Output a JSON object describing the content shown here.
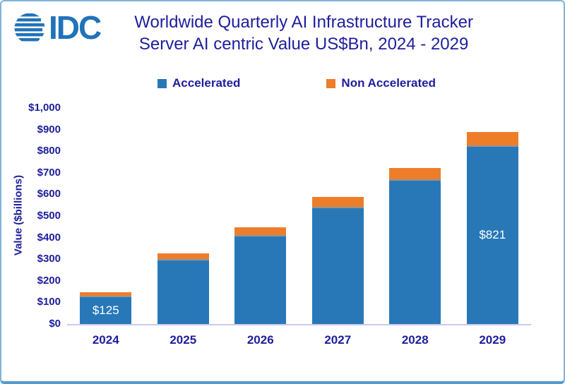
{
  "header": {
    "title_line1": "Worldwide Quarterly AI Infrastructure Tracker",
    "title_line2": "Server AI centric Value US$Bn, 2024 - 2029"
  },
  "logo": {
    "text": "IDC"
  },
  "colors": {
    "accelerated": "#2878b8",
    "non_accelerated": "#ee7d2a",
    "navy_text": "#1e1e9c",
    "logo_blue": "#2173b8",
    "axis_line": "#c9c9f2",
    "frame_border": "#7fb3d8",
    "segment_divider": "#8e9499",
    "bar_label_text": "#ffffff"
  },
  "legend": {
    "items": [
      {
        "label": "Accelerated",
        "color": "#2878b8"
      },
      {
        "label": "Non Accelerated",
        "color": "#ee7d2a"
      }
    ]
  },
  "chart_data": {
    "type": "bar",
    "stacked": true,
    "title": "Worldwide Quarterly AI Infrastructure Tracker",
    "subtitle": "Server AI centric Value US$Bn, 2024 - 2029",
    "categories": [
      "2024",
      "2025",
      "2026",
      "2027",
      "2028",
      "2029"
    ],
    "series": [
      {
        "name": "Accelerated",
        "color": "#2878b8",
        "values": [
          125,
          293,
          404,
          535,
          663,
          821
        ]
      },
      {
        "name": "Non Accelerated",
        "color": "#ee7d2a",
        "values": [
          23,
          33,
          43,
          53,
          60,
          68
        ]
      }
    ],
    "totals_estimated": [
      148,
      326,
      447,
      588,
      723,
      889
    ],
    "bar_labels": [
      "$125",
      "",
      "",
      "",
      "",
      "$821"
    ],
    "xlabel": "",
    "ylabel": "Value ($billions)",
    "ylim": [
      0,
      1000
    ],
    "ytick_step": 100,
    "ytick_labels": [
      "$0",
      "$100",
      "$200",
      "$300",
      "$400",
      "$500",
      "$600",
      "$700",
      "$800",
      "$900",
      "$1,000"
    ],
    "grid": false,
    "legend_position": "top"
  }
}
